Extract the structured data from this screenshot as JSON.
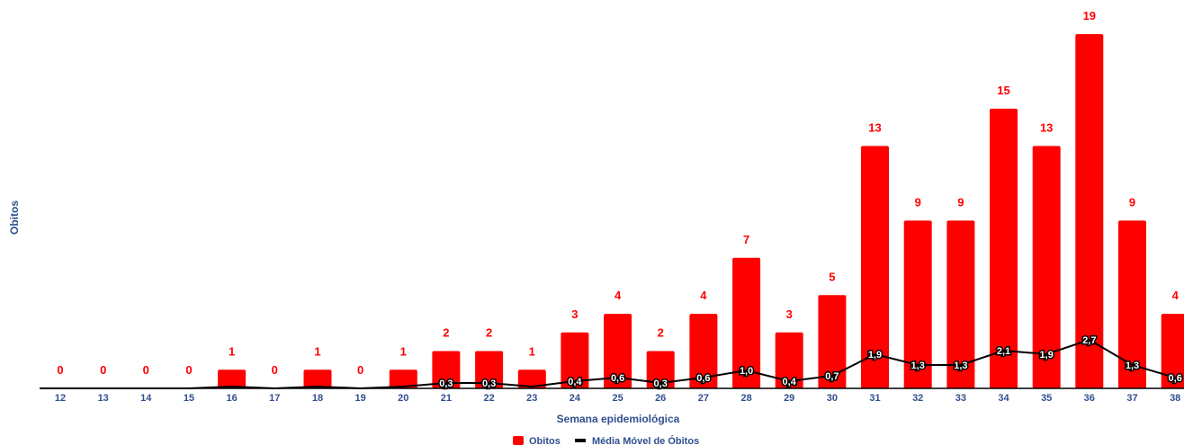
{
  "chart_data": {
    "type": "bar",
    "xlabel": "Semana epidemiológica",
    "ylabel": "Obitos",
    "categories": [
      "12",
      "13",
      "14",
      "15",
      "16",
      "17",
      "18",
      "19",
      "20",
      "21",
      "22",
      "23",
      "24",
      "25",
      "26",
      "27",
      "28",
      "29",
      "30",
      "31",
      "32",
      "33",
      "34",
      "35",
      "36",
      "37",
      "38"
    ],
    "series": [
      {
        "name": "Obitos",
        "type": "bar",
        "color": "#ff0000",
        "values": [
          0,
          0,
          0,
          0,
          1,
          0,
          1,
          0,
          1,
          2,
          2,
          1,
          3,
          4,
          2,
          4,
          7,
          3,
          5,
          13,
          9,
          9,
          15,
          13,
          19,
          9,
          4
        ],
        "labels": [
          "0",
          "0",
          "0",
          "0",
          "1",
          "0",
          "1",
          "0",
          "1",
          "2",
          "2",
          "1",
          "3",
          "4",
          "2",
          "4",
          "7",
          "3",
          "5",
          "13",
          "9",
          "9",
          "15",
          "13",
          "19",
          "9",
          "4"
        ]
      },
      {
        "name": "Média Móvel de Óbitos",
        "type": "line",
        "color": "#000000",
        "values": [
          0,
          0,
          0,
          0,
          0.1,
          0,
          0.1,
          0,
          0.1,
          0.3,
          0.3,
          0.1,
          0.4,
          0.6,
          0.3,
          0.6,
          1.0,
          0.4,
          0.7,
          1.9,
          1.3,
          1.3,
          2.1,
          1.9,
          2.7,
          1.3,
          0.6
        ],
        "labels": [
          "",
          "",
          "",
          "",
          "",
          "",
          "",
          "",
          "",
          "0,3",
          "0,3",
          "",
          "0,4",
          "0,6",
          "0,3",
          "0,6",
          "1,0",
          "0,4",
          "0,7",
          "1,9",
          "1,3",
          "1,3",
          "2,1",
          "1,9",
          "2,7",
          "1,3",
          "0,6"
        ]
      }
    ],
    "ylim": [
      0,
      19
    ],
    "grid": false,
    "legend_position": "bottom"
  }
}
